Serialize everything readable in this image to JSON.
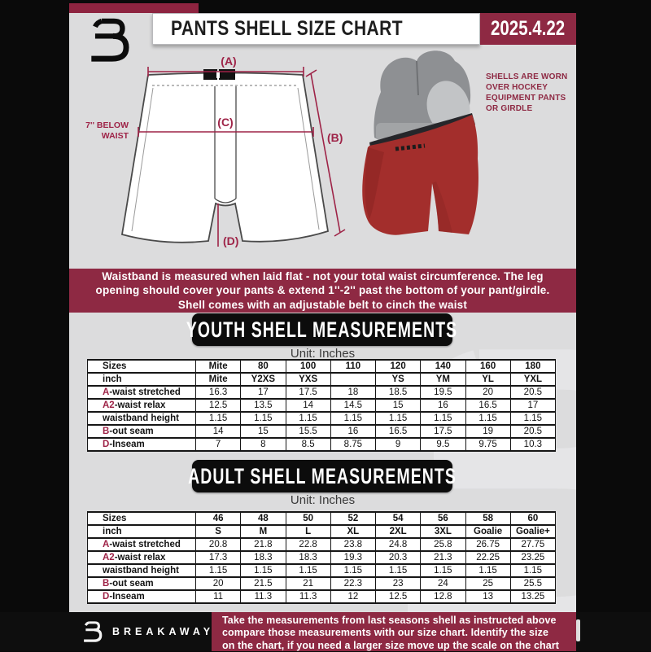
{
  "header": {
    "title": "PANTS SHELL SIZE CHART",
    "date": "2025.4.22"
  },
  "diagram": {
    "label_a": "(A)",
    "label_b": "(B)",
    "label_c": "(C)",
    "label_d": "(D)",
    "below_waist_note": "7'' BELOW\nWAIST"
  },
  "photo_caption": "SHELLS ARE WORN\nOVER HOCKEY\nEQUIPMENT PANTS\nOR GIRDLE",
  "info_banner": "Waistband is measured when laid flat - not your total waist circumference. The leg\nopening should cover your pants & extend 1''-2'' past the bottom of your pant/girdle.\nShell comes with an adjustable belt to cinch the waist",
  "youth": {
    "heading": "YOUTH SHELL MEASUREMENTS",
    "unit": "Unit: Inches",
    "sizes_label": "Sizes",
    "sizes": [
      "Mite",
      "80",
      "100",
      "110",
      "120",
      "140",
      "160",
      "180"
    ],
    "inch_label": "inch",
    "inch": [
      "Mite",
      "Y2XS",
      "YXS",
      "",
      "YS",
      "YM",
      "YL",
      "YXL"
    ],
    "rows": [
      {
        "prefix": "A",
        "label": "-waist stretched",
        "values": [
          "16.3",
          "17",
          "17.5",
          "18",
          "18.5",
          "19.5",
          "20",
          "20.5"
        ]
      },
      {
        "prefix": "A2",
        "label": "-waist relax",
        "values": [
          "12.5",
          "13.5",
          "14",
          "14.5",
          "15",
          "16",
          "16.5",
          "17"
        ]
      },
      {
        "prefix": "",
        "label": "waistband height",
        "values": [
          "1.15",
          "1.15",
          "1.15",
          "1.15",
          "1.15",
          "1.15",
          "1.15",
          "1.15"
        ]
      },
      {
        "prefix": "B",
        "label": "-out seam",
        "values": [
          "14",
          "15",
          "15.5",
          "16",
          "16.5",
          "17.5",
          "19",
          "20.5"
        ]
      },
      {
        "prefix": "D",
        "label": "-Inseam",
        "values": [
          "7",
          "8",
          "8.5",
          "8.75",
          "9",
          "9.5",
          "9.75",
          "10.3"
        ]
      }
    ]
  },
  "adult": {
    "heading": "ADULT SHELL MEASUREMENTS",
    "unit": "Unit: Inches",
    "sizes_label": "Sizes",
    "sizes": [
      "46",
      "48",
      "50",
      "52",
      "54",
      "56",
      "58",
      "60"
    ],
    "inch_label": "inch",
    "inch": [
      "S",
      "M",
      "L",
      "XL",
      "2XL",
      "3XL",
      "Goalie",
      "Goalie+"
    ],
    "rows": [
      {
        "prefix": "A",
        "label": "-waist stretched",
        "values": [
          "20.8",
          "21.8",
          "22.8",
          "23.8",
          "24.8",
          "25.8",
          "26.75",
          "27.75"
        ]
      },
      {
        "prefix": "A2",
        "label": "-waist relax",
        "values": [
          "17.3",
          "18.3",
          "18.3",
          "19.3",
          "20.3",
          "21.3",
          "22.25",
          "23.25"
        ]
      },
      {
        "prefix": "",
        "label": "waistband height",
        "values": [
          "1.15",
          "1.15",
          "1.15",
          "1.15",
          "1.15",
          "1.15",
          "1.15",
          "1.15"
        ]
      },
      {
        "prefix": "B",
        "label": "-out seam",
        "values": [
          "20",
          "21.5",
          "21",
          "22.3",
          "23",
          "24",
          "25",
          "25.5"
        ]
      },
      {
        "prefix": "D",
        "label": "-Inseam",
        "values": [
          "11",
          "11.3",
          "11.3",
          "12",
          "12.5",
          "12.8",
          "13",
          "13.25"
        ]
      }
    ]
  },
  "footer": {
    "brand": "BREAKAWAY",
    "note": "Take the measurements from last seasons shell as instructed above\ncompare those measurements with our size chart. Identify the size\non the chart, if you need a larger size move up the scale on the chart"
  },
  "colors": {
    "maroon": "#8e2943",
    "maroon_dark": "#8e2440",
    "crimson_accent": "#9e2347",
    "banner_black": "#0c0c0c",
    "content_gray": "#dcdcdd",
    "shell_red": "#a32e2c"
  }
}
